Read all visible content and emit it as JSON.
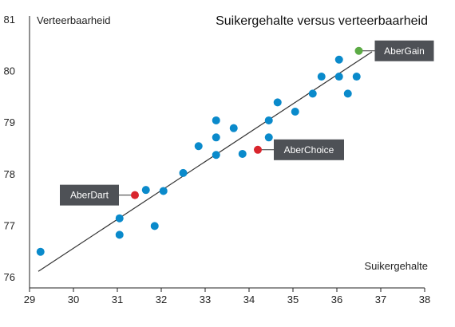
{
  "chart_data": {
    "type": "scatter",
    "title": "Suikergehalte versus verteerbaarheid",
    "xlabel": "Suikergehalte",
    "ylabel": "Verteerbaarheid",
    "xlim": [
      29,
      38
    ],
    "ylim": [
      76,
      81
    ],
    "xticks": [
      29,
      30,
      31,
      32,
      33,
      34,
      35,
      36,
      37,
      38
    ],
    "yticks": [
      76,
      77,
      78,
      79,
      80,
      81
    ],
    "grid": false,
    "colors": {
      "points": "#0a8acb",
      "highlight_red": "#d9252d",
      "highlight_green": "#5cab45",
      "trend": "#333333",
      "callout_bg": "#4e5156",
      "axis": "#222222"
    },
    "points": [
      [
        29.25,
        76.5
      ],
      [
        31.05,
        76.83
      ],
      [
        31.05,
        77.15
      ],
      [
        31.65,
        77.7
      ],
      [
        31.85,
        77.0
      ],
      [
        32.05,
        77.68
      ],
      [
        32.5,
        78.03
      ],
      [
        32.85,
        78.55
      ],
      [
        33.25,
        78.38
      ],
      [
        33.25,
        78.72
      ],
      [
        33.25,
        79.05
      ],
      [
        33.65,
        78.9
      ],
      [
        33.85,
        78.4
      ],
      [
        34.45,
        78.72
      ],
      [
        34.45,
        79.05
      ],
      [
        34.65,
        79.4
      ],
      [
        35.05,
        79.22
      ],
      [
        35.45,
        79.57
      ],
      [
        35.65,
        79.9
      ],
      [
        36.05,
        79.9
      ],
      [
        36.05,
        80.23
      ],
      [
        36.25,
        79.57
      ],
      [
        36.45,
        79.9
      ]
    ],
    "highlighted": [
      {
        "name": "AberDart",
        "x": 31.4,
        "y": 77.6,
        "color": "#d9252d",
        "label_side": "left"
      },
      {
        "name": "AberChoice",
        "x": 34.2,
        "y": 78.48,
        "color": "#d9252d",
        "label_side": "right"
      },
      {
        "name": "AberGain",
        "x": 36.5,
        "y": 80.4,
        "color": "#5cab45",
        "label_side": "right"
      }
    ],
    "trendline": {
      "x": [
        29.2,
        36.8
      ],
      "y": [
        76.12,
        80.38
      ]
    }
  }
}
